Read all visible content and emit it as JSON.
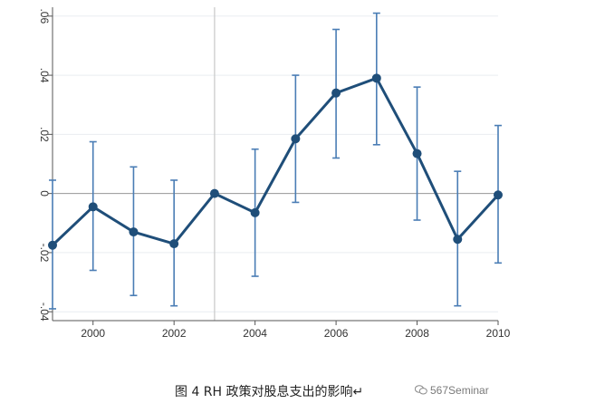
{
  "chart_data": {
    "type": "line",
    "x": [
      1999,
      2000,
      2001,
      2002,
      2003,
      2004,
      2005,
      2006,
      2007,
      2008,
      2009,
      2010
    ],
    "y": [
      -0.0175,
      -0.0045,
      -0.013,
      -0.017,
      0.0,
      -0.0065,
      0.0185,
      0.034,
      0.039,
      0.0135,
      -0.0155,
      -0.0005
    ],
    "ci_lower": [
      -0.039,
      -0.026,
      -0.0345,
      -0.038,
      0.0,
      -0.028,
      -0.003,
      0.012,
      0.0165,
      -0.009,
      -0.038,
      -0.0235
    ],
    "ci_upper": [
      0.0045,
      0.0175,
      0.009,
      0.0045,
      0.0,
      0.015,
      0.04,
      0.0555,
      0.061,
      0.036,
      0.0075,
      0.023
    ],
    "xticks": [
      2000,
      2002,
      2004,
      2006,
      2008,
      2010
    ],
    "yticks": [
      -0.04,
      -0.02,
      0,
      0.02,
      0.04,
      0.06
    ],
    "ytick_labels": [
      "-.04",
      "-.02",
      "0",
      ".02",
      ".04",
      ".06"
    ],
    "xlim": [
      1999,
      2010
    ],
    "ylim": [
      -0.043,
      0.063
    ],
    "reference_vline_x": 2003,
    "reference_hline_y": 0,
    "grid": true,
    "title": "",
    "xlabel": "",
    "ylabel": "",
    "colors": {
      "line": "#1f4e79",
      "ci": "#4a7db5",
      "grid": "#e9edf1",
      "ref": "#c8c8c8",
      "zero": "#999999"
    }
  },
  "caption": "图 4 RH 政策对股息支出的影响↵",
  "watermark": "567Seminar"
}
